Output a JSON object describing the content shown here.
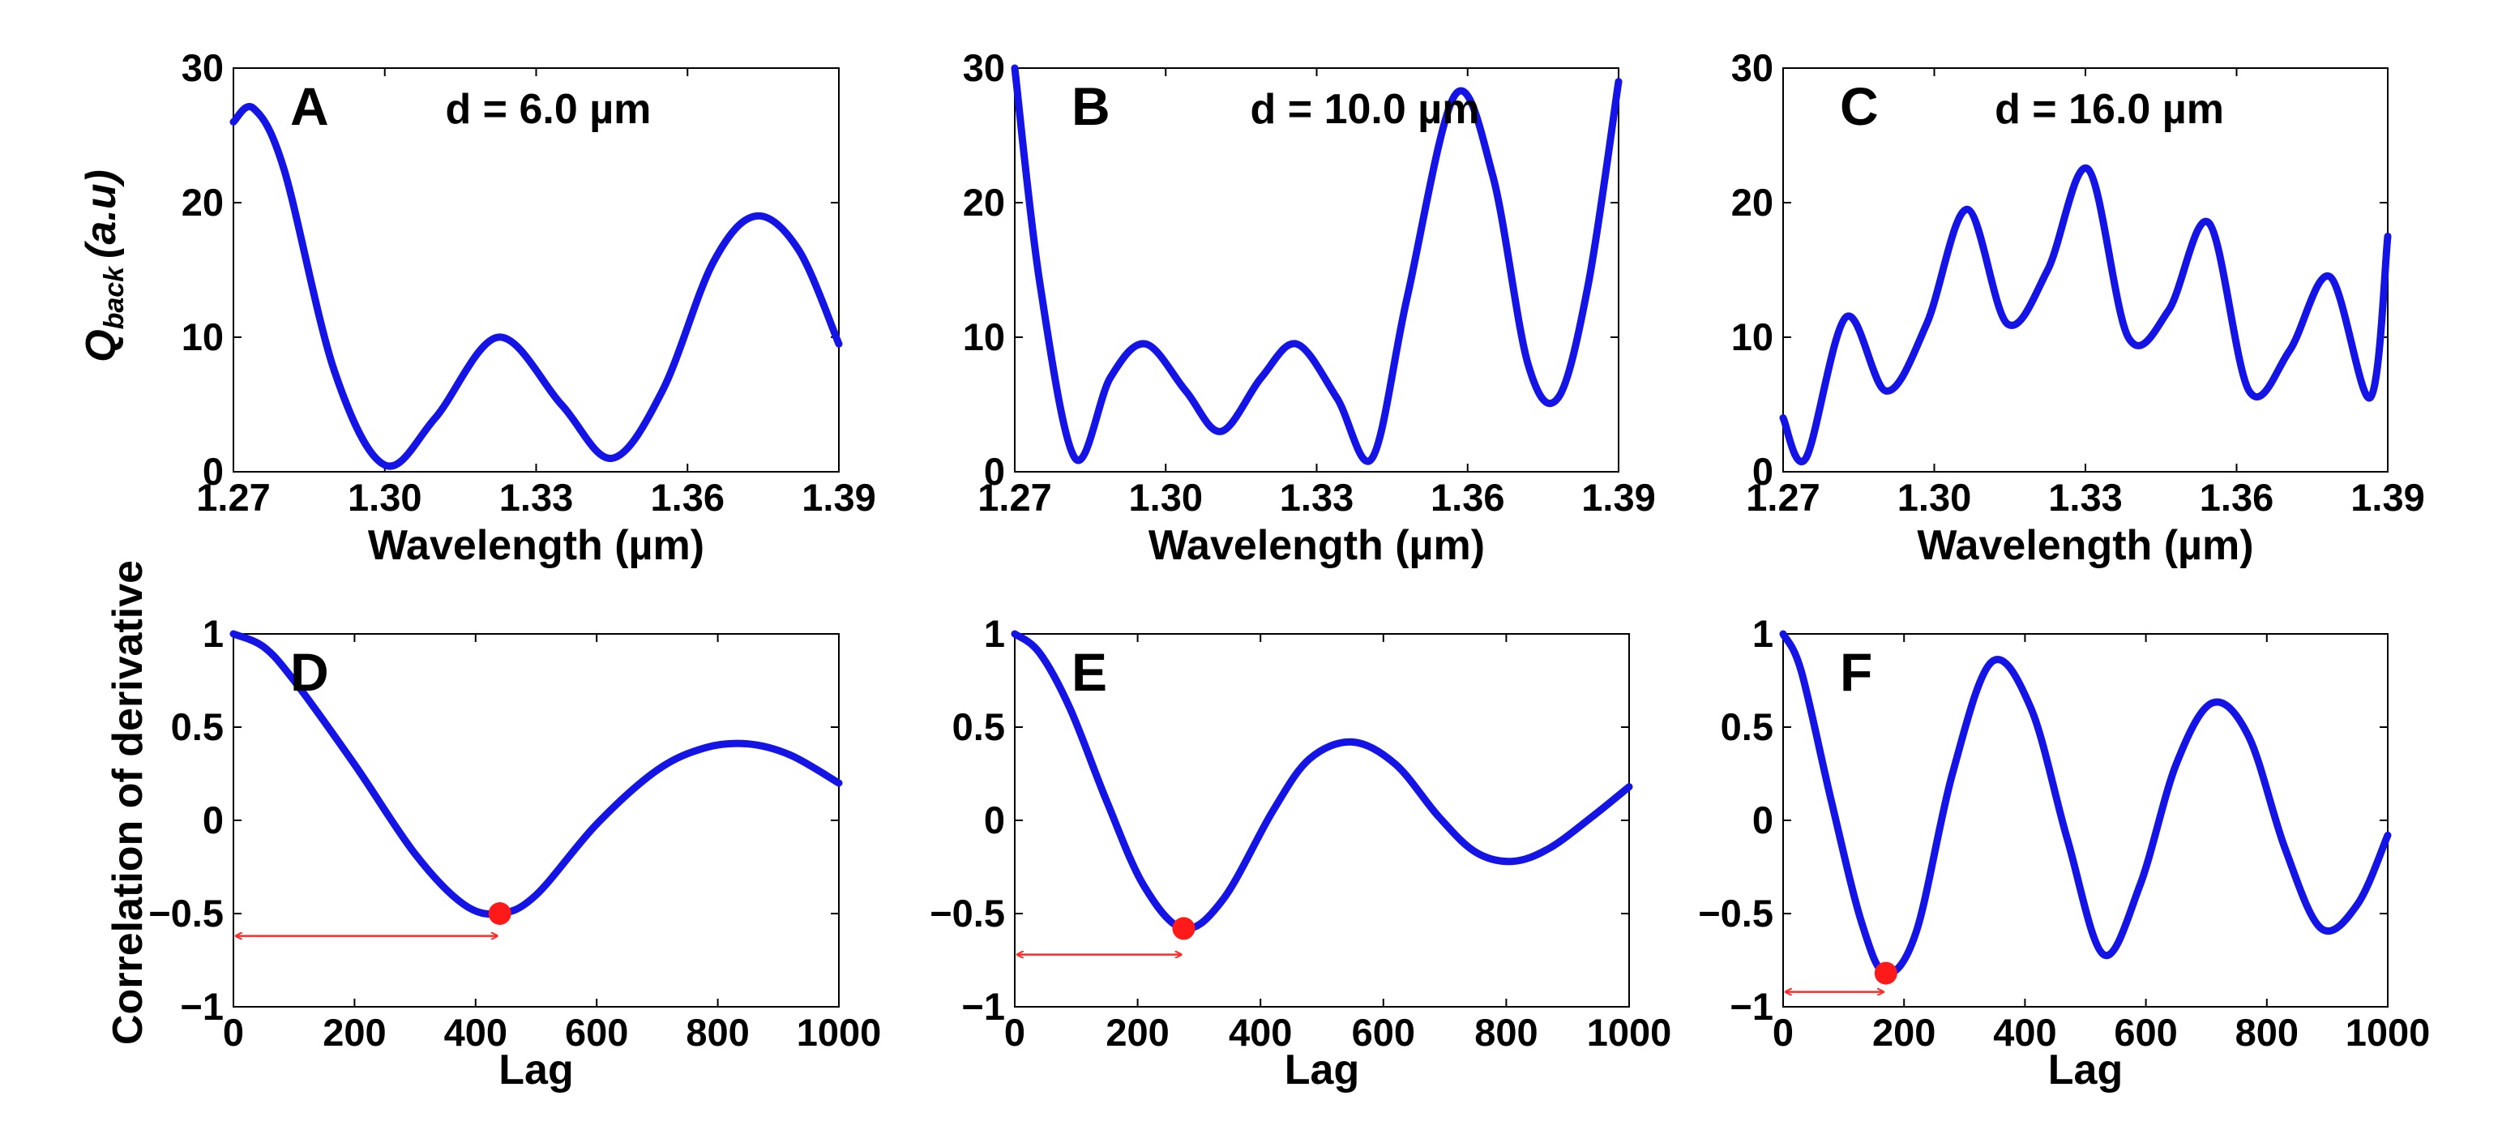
{
  "colors": {
    "curve": "#1414e6",
    "marker": "#ff1a1a",
    "arrow": "#ff2a2a",
    "axis": "#000000",
    "background": "#ffffff"
  },
  "labels": {
    "qback_main": "Q",
    "qback_sub": "back",
    "qback_unit": "(a.u)",
    "corr_ylabel": "Correlation of derivative"
  },
  "chart_data": [
    {
      "id": "A",
      "type": "line",
      "panel_label": "A",
      "annotation": "d = 6.0 µm",
      "xlabel": "Wavelength (µm)",
      "xlim": [
        1.27,
        1.39
      ],
      "ylim": [
        0,
        30
      ],
      "xticks": [
        "1.27",
        "1.30",
        "1.33",
        "1.36",
        "1.39"
      ],
      "xtick_values": [
        1.27,
        1.3,
        1.33,
        1.36,
        1.39
      ],
      "yticks": [
        "0",
        "10",
        "20",
        "30"
      ],
      "ytick_values": [
        0,
        10,
        20,
        30
      ],
      "series": [
        {
          "name": "Q_back",
          "x": [
            1.27,
            1.274,
            1.28,
            1.29,
            1.3,
            1.31,
            1.3225,
            1.335,
            1.345,
            1.355,
            1.365,
            1.3735,
            1.382,
            1.39
          ],
          "y": [
            26.0,
            27.0,
            22.5,
            7.5,
            0.5,
            4.0,
            10.0,
            5.0,
            1.0,
            6.0,
            15.5,
            19.0,
            16.5,
            9.5
          ]
        }
      ]
    },
    {
      "id": "B",
      "type": "line",
      "panel_label": "B",
      "annotation": "d = 10.0 µm",
      "xlabel": "Wavelength (µm)",
      "xlim": [
        1.27,
        1.39
      ],
      "ylim": [
        0,
        30
      ],
      "xticks": [
        "1.27",
        "1.30",
        "1.33",
        "1.36",
        "1.39"
      ],
      "xtick_values": [
        1.27,
        1.3,
        1.33,
        1.36,
        1.39
      ],
      "yticks": [
        "0",
        "10",
        "20",
        "30"
      ],
      "ytick_values": [
        0,
        10,
        20,
        30
      ],
      "series": [
        {
          "name": "Q_back",
          "x": [
            1.27,
            1.275,
            1.282,
            1.289,
            1.296,
            1.304,
            1.311,
            1.319,
            1.326,
            1.334,
            1.341,
            1.348,
            1.3575,
            1.365,
            1.372,
            1.378,
            1.384,
            1.39
          ],
          "y": [
            30.0,
            14.0,
            1.0,
            7.0,
            9.5,
            6.0,
            3.0,
            7.0,
            9.5,
            5.5,
            1.0,
            13.0,
            28.0,
            22.0,
            8.0,
            5.5,
            14.0,
            29.0
          ]
        }
      ]
    },
    {
      "id": "C",
      "type": "line",
      "panel_label": "C",
      "annotation": "d = 16.0 µm",
      "xlabel": "Wavelength (µm)",
      "xlim": [
        1.27,
        1.39
      ],
      "ylim": [
        0,
        30
      ],
      "xticks": [
        "1.27",
        "1.30",
        "1.33",
        "1.36",
        "1.39"
      ],
      "xtick_values": [
        1.27,
        1.3,
        1.33,
        1.36,
        1.39
      ],
      "yticks": [
        "0",
        "10",
        "20",
        "30"
      ],
      "ytick_values": [
        0,
        10,
        20,
        30
      ],
      "series": [
        {
          "name": "Q_back",
          "x": [
            1.27,
            1.2745,
            1.2825,
            1.2905,
            1.2985,
            1.3065,
            1.3145,
            1.3225,
            1.3305,
            1.3385,
            1.3465,
            1.3545,
            1.3625,
            1.3705,
            1.3785,
            1.3865,
            1.39
          ],
          "y": [
            4.0,
            1.0,
            11.5,
            6.0,
            11.0,
            19.5,
            11.0,
            15.0,
            22.5,
            10.0,
            12.0,
            18.5,
            6.0,
            9.0,
            14.5,
            5.5,
            17.5
          ]
        }
      ]
    },
    {
      "id": "D",
      "type": "line",
      "panel_label": "D",
      "xlabel": "Lag",
      "xlim": [
        0,
        1000
      ],
      "ylim": [
        -1,
        1
      ],
      "xticks": [
        "0",
        "200",
        "400",
        "600",
        "800",
        "1000"
      ],
      "xtick_values": [
        0,
        200,
        400,
        600,
        800,
        1000
      ],
      "yticks": [
        "−1",
        "−0.5",
        "0",
        "0.5",
        "1"
      ],
      "ytick_values": [
        -1,
        -0.5,
        0,
        0.5,
        1
      ],
      "series": [
        {
          "name": "correlation",
          "x": [
            0,
            50,
            100,
            200,
            300,
            380,
            440,
            500,
            600,
            700,
            780,
            850,
            920,
            1000
          ],
          "y": [
            1.0,
            0.93,
            0.75,
            0.3,
            -0.18,
            -0.45,
            -0.5,
            -0.4,
            -0.02,
            0.27,
            0.39,
            0.41,
            0.35,
            0.2
          ]
        }
      ],
      "minimum": {
        "lag": 440,
        "value": -0.5
      },
      "arrow_y": -0.62
    },
    {
      "id": "E",
      "type": "line",
      "panel_label": "E",
      "xlabel": "Lag",
      "xlim": [
        0,
        1000
      ],
      "ylim": [
        -1,
        1
      ],
      "xticks": [
        "0",
        "200",
        "400",
        "600",
        "800",
        "1000"
      ],
      "xtick_values": [
        0,
        200,
        400,
        600,
        800,
        1000
      ],
      "yticks": [
        "−1",
        "−0.5",
        "0",
        "0.5",
        "1"
      ],
      "ytick_values": [
        -1,
        -0.5,
        0,
        0.5,
        1
      ],
      "series": [
        {
          "name": "correlation",
          "x": [
            0,
            40,
            90,
            150,
            210,
            275,
            340,
            420,
            480,
            550,
            620,
            690,
            750,
            810,
            870,
            940,
            1000
          ],
          "y": [
            1.0,
            0.9,
            0.6,
            0.1,
            -0.35,
            -0.58,
            -0.42,
            0.05,
            0.33,
            0.42,
            0.3,
            0.02,
            -0.17,
            -0.22,
            -0.15,
            0.02,
            0.18
          ]
        }
      ],
      "minimum": {
        "lag": 275,
        "value": -0.58
      },
      "arrow_y": -0.72
    },
    {
      "id": "F",
      "type": "line",
      "panel_label": "F",
      "xlabel": "Lag",
      "xlim": [
        0,
        1000
      ],
      "ylim": [
        -1,
        1
      ],
      "xticks": [
        "0",
        "200",
        "400",
        "600",
        "800",
        "1000"
      ],
      "xtick_values": [
        0,
        200,
        400,
        600,
        800,
        1000
      ],
      "yticks": [
        "−1",
        "−0.5",
        "0",
        "0.5",
        "1"
      ],
      "ytick_values": [
        -1,
        -0.5,
        0,
        0.5,
        1
      ],
      "series": [
        {
          "name": "correlation",
          "x": [
            0,
            30,
            80,
            130,
            170,
            220,
            280,
            345,
            410,
            470,
            530,
            590,
            650,
            710,
            770,
            830,
            890,
            950,
            1000
          ],
          "y": [
            1.0,
            0.8,
            0.1,
            -0.55,
            -0.82,
            -0.6,
            0.25,
            0.85,
            0.6,
            -0.1,
            -0.72,
            -0.35,
            0.3,
            0.63,
            0.45,
            -0.15,
            -0.58,
            -0.45,
            -0.08
          ]
        }
      ],
      "minimum": {
        "lag": 170,
        "value": -0.82
      },
      "arrow_y": -0.92
    }
  ]
}
